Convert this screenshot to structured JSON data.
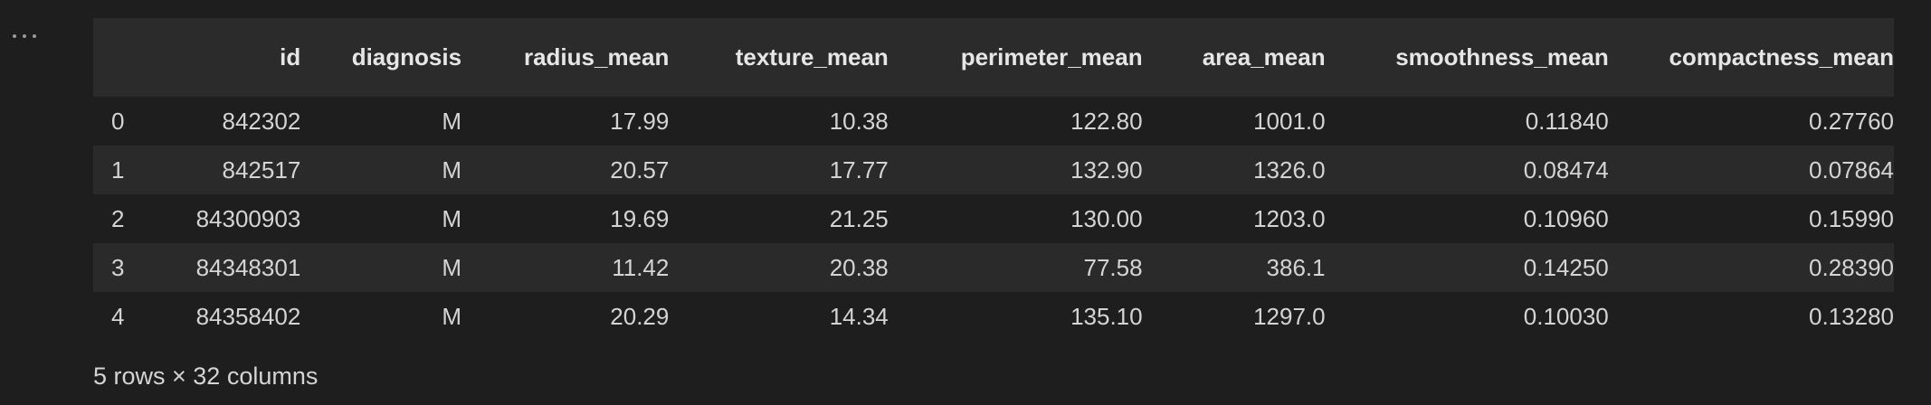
{
  "output_menu": {
    "icon": "ellipsis-icon"
  },
  "table": {
    "columns": [
      "",
      "id",
      "diagnosis",
      "radius_mean",
      "texture_mean",
      "perimeter_mean",
      "area_mean",
      "smoothness_mean",
      "compactness_mean"
    ],
    "rows": [
      [
        "0",
        "842302",
        "M",
        "17.99",
        "10.38",
        "122.80",
        "1001.0",
        "0.11840",
        "0.27760"
      ],
      [
        "1",
        "842517",
        "M",
        "20.57",
        "17.77",
        "132.90",
        "1326.0",
        "0.08474",
        "0.07864"
      ],
      [
        "2",
        "84300903",
        "M",
        "19.69",
        "21.25",
        "130.00",
        "1203.0",
        "0.10960",
        "0.15990"
      ],
      [
        "3",
        "84348301",
        "M",
        "11.42",
        "20.38",
        "77.58",
        "386.1",
        "0.14250",
        "0.28390"
      ],
      [
        "4",
        "84358402",
        "M",
        "20.29",
        "14.34",
        "135.10",
        "1297.0",
        "0.10030",
        "0.13280"
      ]
    ]
  },
  "footer": {
    "shape_text": "5 rows × 32 columns"
  }
}
